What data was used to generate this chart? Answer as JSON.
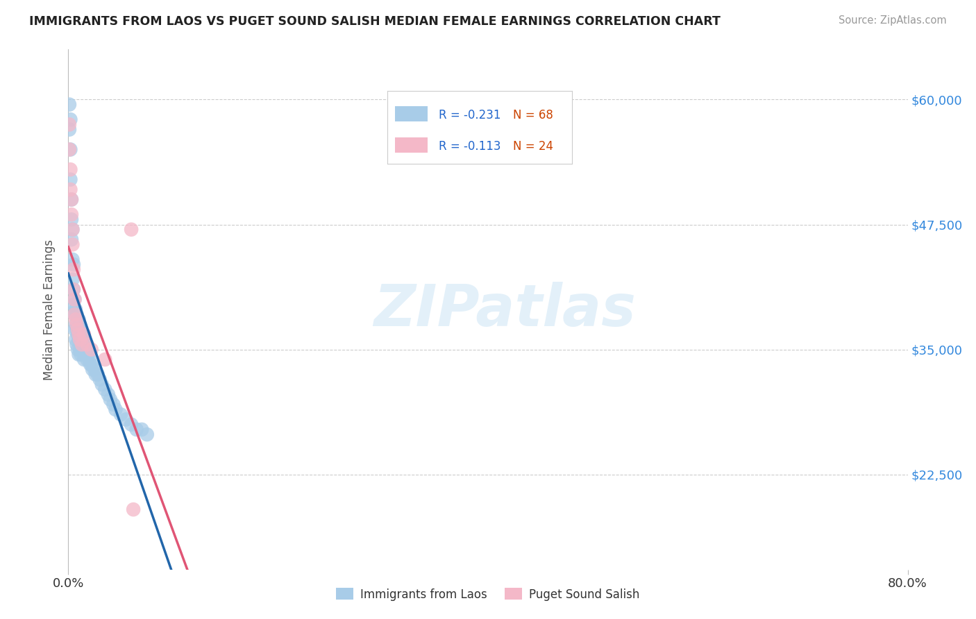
{
  "title": "IMMIGRANTS FROM LAOS VS PUGET SOUND SALISH MEDIAN FEMALE EARNINGS CORRELATION CHART",
  "source": "Source: ZipAtlas.com",
  "ylabel": "Median Female Earnings",
  "xlim": [
    0.0,
    0.8
  ],
  "ylim": [
    13000,
    65000
  ],
  "yticks": [
    22500,
    35000,
    47500,
    60000
  ],
  "ytick_labels": [
    "$22,500",
    "$35,000",
    "$47,500",
    "$60,000"
  ],
  "xtick_labels": [
    "0.0%",
    "80.0%"
  ],
  "legend_labels_bottom": [
    "Immigrants from Laos",
    "Puget Sound Salish"
  ],
  "legend_r1": "-0.231",
  "legend_n1": "68",
  "legend_r2": "-0.113",
  "legend_n2": "24",
  "color_blue": "#a8cce8",
  "color_pink": "#f4b8c8",
  "color_blue_line": "#2266aa",
  "color_pink_line": "#e05575",
  "color_blue_dashed": "#bbccdd",
  "watermark": "ZIPatlas",
  "background_color": "#ffffff",
  "grid_color": "#cccccc",
  "blue_scatter_x": [
    0.001,
    0.001,
    0.002,
    0.002,
    0.002,
    0.003,
    0.003,
    0.003,
    0.004,
    0.004,
    0.004,
    0.005,
    0.005,
    0.005,
    0.006,
    0.006,
    0.006,
    0.007,
    0.007,
    0.007,
    0.008,
    0.008,
    0.008,
    0.009,
    0.009,
    0.009,
    0.01,
    0.01,
    0.01,
    0.01,
    0.011,
    0.011,
    0.011,
    0.012,
    0.012,
    0.012,
    0.013,
    0.013,
    0.014,
    0.014,
    0.015,
    0.015,
    0.016,
    0.016,
    0.017,
    0.018,
    0.018,
    0.019,
    0.02,
    0.021,
    0.022,
    0.023,
    0.025,
    0.026,
    0.028,
    0.03,
    0.032,
    0.035,
    0.038,
    0.04,
    0.043,
    0.045,
    0.05,
    0.055,
    0.06,
    0.065,
    0.07,
    0.075
  ],
  "blue_scatter_y": [
    59500,
    57000,
    55000,
    52000,
    58000,
    50000,
    48000,
    46000,
    47000,
    44000,
    42000,
    43500,
    41000,
    39500,
    40000,
    38500,
    37000,
    39000,
    37500,
    36000,
    38500,
    37000,
    35500,
    38000,
    36500,
    35000,
    38000,
    37000,
    36000,
    34500,
    37500,
    36500,
    35000,
    37000,
    36000,
    34500,
    36500,
    35500,
    36000,
    35000,
    36000,
    34000,
    35500,
    34500,
    35000,
    35000,
    34000,
    34500,
    34000,
    33500,
    33500,
    33000,
    33000,
    32500,
    32500,
    32000,
    31500,
    31000,
    30500,
    30000,
    29500,
    29000,
    28500,
    28000,
    27500,
    27000,
    27000,
    26500
  ],
  "pink_scatter_x": [
    0.001,
    0.001,
    0.002,
    0.002,
    0.003,
    0.003,
    0.004,
    0.004,
    0.005,
    0.005,
    0.006,
    0.006,
    0.007,
    0.008,
    0.009,
    0.01,
    0.011,
    0.013,
    0.015,
    0.018,
    0.022,
    0.035,
    0.06,
    0.062
  ],
  "pink_scatter_y": [
    57500,
    55000,
    53000,
    51000,
    50000,
    48500,
    47000,
    45500,
    43000,
    41000,
    40000,
    38500,
    38000,
    37500,
    37000,
    36500,
    36000,
    35500,
    36500,
    35500,
    35000,
    34000,
    47000,
    19000
  ],
  "blue_line_x_solid_end": 0.16,
  "blue_line_x_dashed_end": 0.8,
  "pink_line_x_end": 0.8
}
